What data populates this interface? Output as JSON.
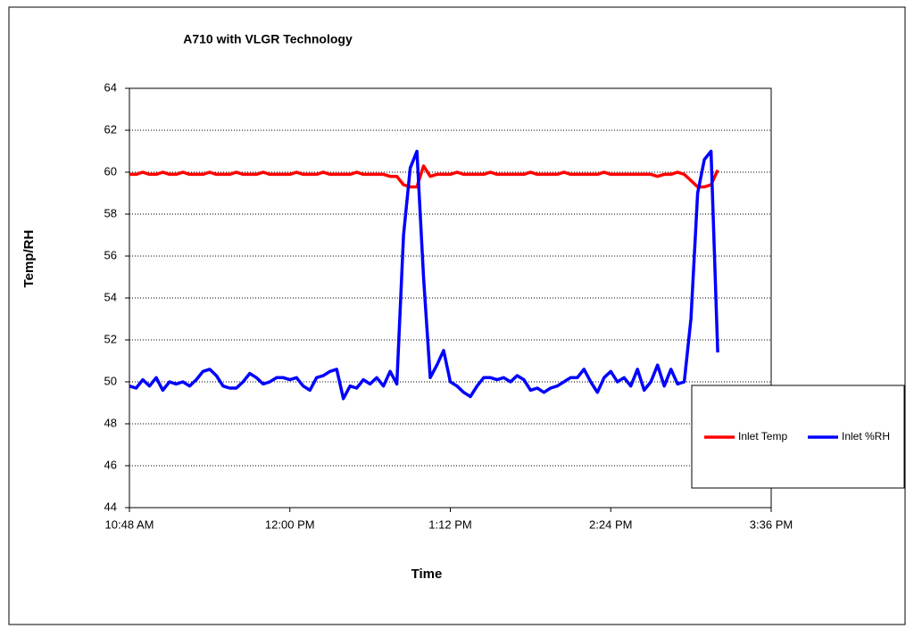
{
  "chart_data": {
    "type": "line",
    "title": "A710 with VLGR Technology",
    "xlabel": "Time",
    "ylabel": "Temp/RH",
    "x": [
      648,
      651,
      654,
      657,
      660,
      663,
      666,
      669,
      672,
      675,
      678,
      681,
      684,
      687,
      690,
      693,
      696,
      699,
      702,
      705,
      708,
      711,
      714,
      717,
      720,
      723,
      726,
      729,
      732,
      735,
      738,
      741,
      744,
      747,
      750,
      753,
      756,
      759,
      762,
      765,
      768,
      771,
      774,
      777,
      780,
      783,
      786,
      789,
      792,
      795,
      798,
      801,
      804,
      807,
      810,
      813,
      816,
      819,
      822,
      825,
      828,
      831,
      834,
      837,
      840,
      843,
      846,
      849,
      852,
      855,
      858,
      861,
      864,
      867,
      870,
      873,
      876,
      879,
      882,
      885,
      888,
      891,
      894,
      897,
      900,
      903,
      906,
      909,
      912
    ],
    "series": [
      {
        "name": "Inlet Temp",
        "color": "#ff0000",
        "values": [
          59.9,
          59.9,
          60.0,
          59.9,
          59.9,
          60.0,
          59.9,
          59.9,
          60.0,
          59.9,
          59.9,
          59.9,
          60.0,
          59.9,
          59.9,
          59.9,
          60.0,
          59.9,
          59.9,
          59.9,
          60.0,
          59.9,
          59.9,
          59.9,
          59.9,
          60.0,
          59.9,
          59.9,
          59.9,
          60.0,
          59.9,
          59.9,
          59.9,
          59.9,
          60.0,
          59.9,
          59.9,
          59.9,
          59.9,
          59.8,
          59.8,
          59.4,
          59.3,
          59.3,
          60.3,
          59.8,
          59.9,
          59.9,
          59.9,
          60.0,
          59.9,
          59.9,
          59.9,
          59.9,
          60.0,
          59.9,
          59.9,
          59.9,
          59.9,
          59.9,
          60.0,
          59.9,
          59.9,
          59.9,
          59.9,
          60.0,
          59.9,
          59.9,
          59.9,
          59.9,
          59.9,
          60.0,
          59.9,
          59.9,
          59.9,
          59.9,
          59.9,
          59.9,
          59.9,
          59.8,
          59.9,
          59.9,
          60.0,
          59.9,
          59.6,
          59.3,
          59.3,
          59.4,
          60.1
        ]
      },
      {
        "name": "Inlet %RH",
        "color": "#0000ff",
        "values": [
          49.8,
          49.7,
          50.1,
          49.8,
          50.2,
          49.6,
          50.0,
          49.9,
          50.0,
          49.8,
          50.1,
          50.5,
          50.6,
          50.3,
          49.8,
          49.7,
          49.7,
          50.0,
          50.4,
          50.2,
          49.9,
          50.0,
          50.2,
          50.2,
          50.1,
          50.2,
          49.8,
          49.6,
          50.2,
          50.3,
          50.5,
          50.6,
          49.2,
          49.8,
          49.7,
          50.1,
          49.9,
          50.2,
          49.8,
          50.5,
          49.9,
          57.0,
          60.2,
          61.0,
          55.0,
          50.2,
          50.8,
          51.5,
          50.0,
          49.8,
          49.5,
          49.3,
          49.8,
          50.2,
          50.2,
          50.1,
          50.2,
          50.0,
          50.3,
          50.1,
          49.6,
          49.7,
          49.5,
          49.7,
          49.8,
          50.0,
          50.2,
          50.2,
          50.6,
          50.0,
          49.5,
          50.2,
          50.5,
          50.0,
          50.2,
          49.8,
          50.6,
          49.6,
          50.0,
          50.8,
          49.8,
          50.6,
          49.9,
          50.0,
          53.0,
          59.0,
          60.6,
          61.0,
          51.4
        ]
      }
    ],
    "xlim": [
      648,
      936
    ],
    "xticks": [
      {
        "value": 648,
        "label": "10:48 AM"
      },
      {
        "value": 720,
        "label": "12:00 PM"
      },
      {
        "value": 792,
        "label": "1:12 PM"
      },
      {
        "value": 864,
        "label": "2:24 PM"
      },
      {
        "value": 936,
        "label": "3:36 PM"
      }
    ],
    "ylim": [
      44,
      64
    ],
    "yticks": [
      44,
      46,
      48,
      50,
      52,
      54,
      56,
      58,
      60,
      62,
      64
    ],
    "grid": true,
    "legend": "right"
  }
}
